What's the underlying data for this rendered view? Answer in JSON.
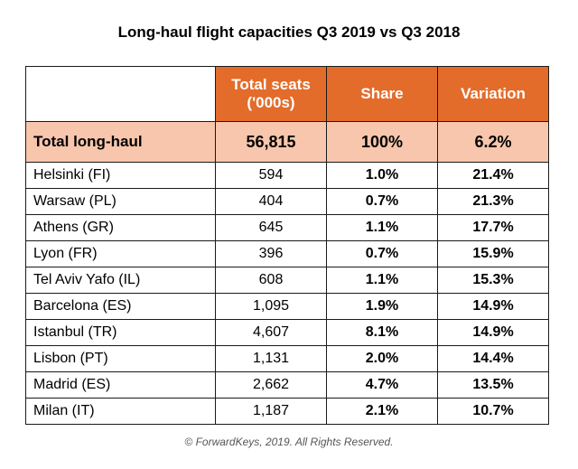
{
  "title": "Long-haul flight capacities Q3 2019 vs Q3 2018",
  "footer": "© ForwardKeys, 2019. All Rights Reserved.",
  "colors": {
    "header_bg": "#e36c2b",
    "header_text": "#ffffff",
    "total_bg": "#f8c6ac"
  },
  "chart_data": {
    "type": "table",
    "title": "Long-haul flight capacities Q3 2019 vs Q3 2018",
    "columns": [
      "Total seats ('000s)",
      "Share",
      "Variation"
    ],
    "total": {
      "name": "Total long-haul",
      "seats": "56,815",
      "share": "100%",
      "variation": "6.2%"
    },
    "rows": [
      {
        "name": "Helsinki (FI)",
        "seats": "594",
        "share": "1.0%",
        "variation": "21.4%"
      },
      {
        "name": "Warsaw (PL)",
        "seats": "404",
        "share": "0.7%",
        "variation": "21.3%"
      },
      {
        "name": "Athens (GR)",
        "seats": "645",
        "share": "1.1%",
        "variation": "17.7%"
      },
      {
        "name": "Lyon (FR)",
        "seats": "396",
        "share": "0.7%",
        "variation": "15.9%"
      },
      {
        "name": "Tel Aviv Yafo (IL)",
        "seats": "608",
        "share": "1.1%",
        "variation": "15.3%"
      },
      {
        "name": "Barcelona (ES)",
        "seats": "1,095",
        "share": "1.9%",
        "variation": "14.9%"
      },
      {
        "name": "Istanbul (TR)",
        "seats": "4,607",
        "share": "8.1%",
        "variation": "14.9%"
      },
      {
        "name": "Lisbon (PT)",
        "seats": "1,131",
        "share": "2.0%",
        "variation": "14.4%"
      },
      {
        "name": "Madrid (ES)",
        "seats": "2,662",
        "share": "4.7%",
        "variation": "13.5%"
      },
      {
        "name": "Milan (IT)",
        "seats": "1,187",
        "share": "2.1%",
        "variation": "10.7%"
      }
    ]
  }
}
